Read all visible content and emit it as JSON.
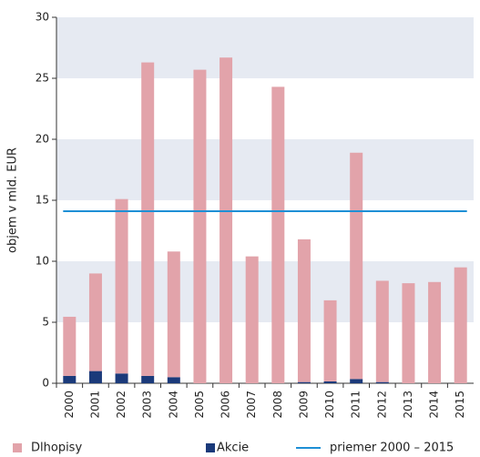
{
  "chart_data": {
    "type": "bar",
    "stacked": true,
    "y_label": "objem v mld. EUR",
    "categories": [
      "2000",
      "2001",
      "2002",
      "2003",
      "2004",
      "2005",
      "2006",
      "2007",
      "2008",
      "2009",
      "2010",
      "2011",
      "2012",
      "2013",
      "2014",
      "2015"
    ],
    "series": [
      {
        "name": "Akcie",
        "color": "#1b3a7a",
        "values": [
          0.6,
          1.0,
          0.8,
          0.6,
          0.5,
          0,
          0,
          0,
          0,
          0.1,
          0.15,
          0.35,
          0.1,
          0,
          0,
          0
        ]
      },
      {
        "name": "Dlhopisy",
        "color": "#e2a3aa",
        "values": [
          4.85,
          8.0,
          14.3,
          25.7,
          10.3,
          25.7,
          26.7,
          10.4,
          24.3,
          11.7,
          6.65,
          18.55,
          8.3,
          8.2,
          8.3,
          9.5
        ]
      }
    ],
    "average": {
      "name": "priemer 2000 – 2015",
      "value": 14.1,
      "color": "#1e8fd5"
    },
    "ylim": [
      0,
      30
    ],
    "yticks": [
      0,
      5,
      10,
      15,
      20,
      25,
      30
    ],
    "bands": true
  }
}
